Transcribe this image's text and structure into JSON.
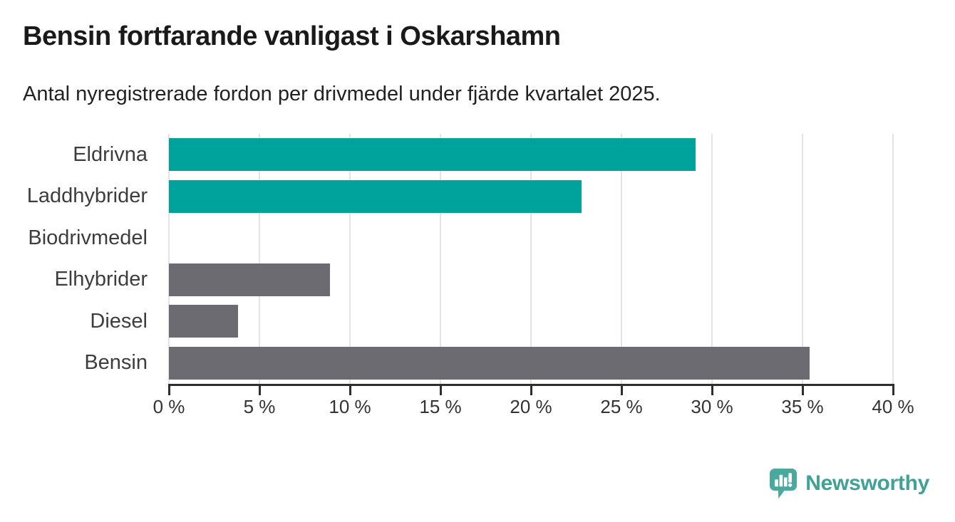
{
  "chart_data": {
    "type": "bar",
    "orientation": "horizontal",
    "title": "Bensin fortfarande vanligast i Oskarshamn",
    "subtitle": "Antal nyregistrerade fordon per drivmedel under fjärde kvartalet 2025.",
    "categories": [
      "Eldrivna",
      "Laddhybrider",
      "Biodrivmedel",
      "Elhybrider",
      "Diesel",
      "Bensin"
    ],
    "values": [
      29.1,
      22.8,
      0,
      8.9,
      3.8,
      35.4
    ],
    "unit": "%",
    "bar_colors": [
      "#00a39b",
      "#00a39b",
      "#6c6b72",
      "#6c6b72",
      "#6c6b72",
      "#6c6b72"
    ],
    "highlight_color": "#00a39b",
    "default_color": "#6c6b72",
    "xlabel": "",
    "ylabel": "",
    "xlim": [
      0,
      40
    ],
    "x_ticks": [
      "0 %",
      "5 %",
      "10 %",
      "15 %",
      "20 %",
      "25 %",
      "30 %",
      "35 %",
      "40 %"
    ],
    "grid": true,
    "gridline_color": "#e4e4e4",
    "axis_color": "#2e2e2e",
    "legend": "none"
  },
  "branding": {
    "logo_text": "Newsworthy",
    "logo_text_color": "#3fa294",
    "logo_icon": "bar-chart-speech-bubble-icon",
    "logo_icon_color": "#4aa89e"
  }
}
